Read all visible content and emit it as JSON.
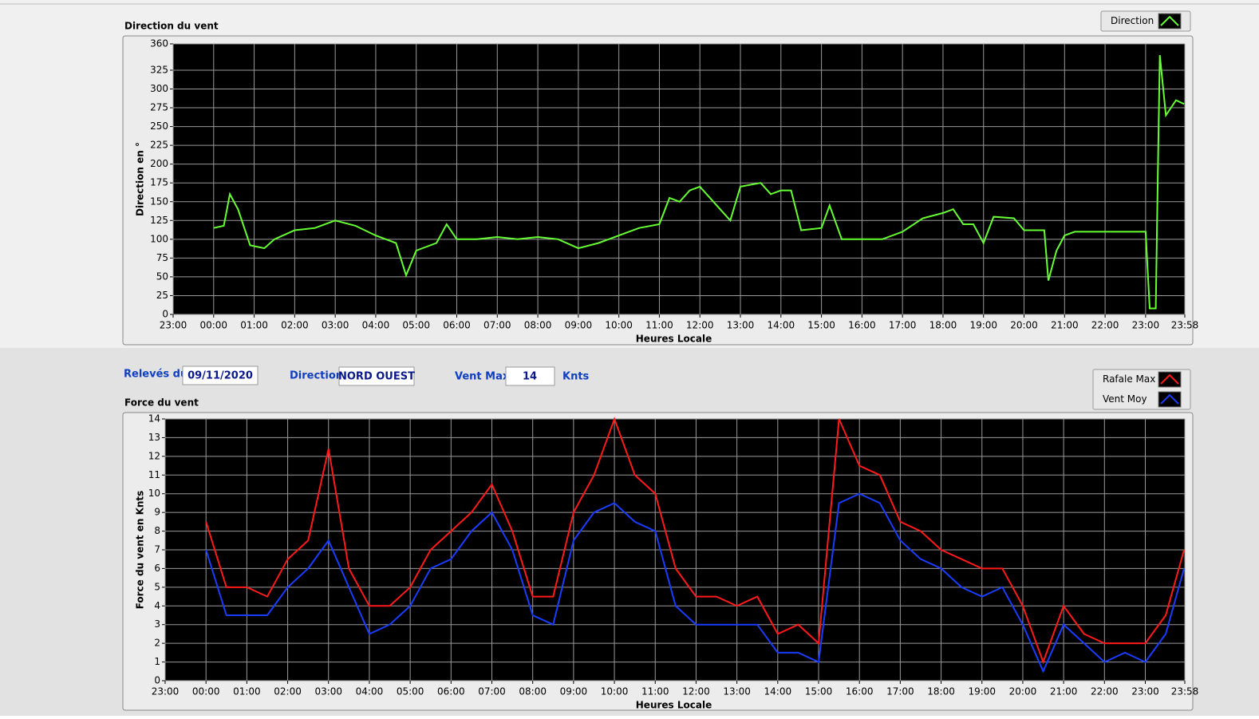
{
  "chart_data": [
    {
      "type": "line",
      "title": "Direction du vent",
      "x_label": "Heures Locale",
      "y_label": "Direction en °",
      "legend": "top-right",
      "grid": true,
      "xlim": [
        -1,
        23.967
      ],
      "ylim": [
        0,
        360
      ],
      "xticks": [
        {
          "value": -1,
          "label": "23:00"
        },
        {
          "value": 0,
          "label": "00:00"
        },
        {
          "value": 1,
          "label": "01:00"
        },
        {
          "value": 2,
          "label": "02:00"
        },
        {
          "value": 3,
          "label": "03:00"
        },
        {
          "value": 4,
          "label": "04:00"
        },
        {
          "value": 5,
          "label": "05:00"
        },
        {
          "value": 6,
          "label": "06:00"
        },
        {
          "value": 7,
          "label": "07:00"
        },
        {
          "value": 8,
          "label": "08:00"
        },
        {
          "value": 9,
          "label": "09:00"
        },
        {
          "value": 10,
          "label": "10:00"
        },
        {
          "value": 11,
          "label": "11:00"
        },
        {
          "value": 12,
          "label": "12:00"
        },
        {
          "value": 13,
          "label": "13:00"
        },
        {
          "value": 14,
          "label": "14:00"
        },
        {
          "value": 15,
          "label": "15:00"
        },
        {
          "value": 16,
          "label": "16:00"
        },
        {
          "value": 17,
          "label": "17:00"
        },
        {
          "value": 18,
          "label": "18:00"
        },
        {
          "value": 19,
          "label": "19:00"
        },
        {
          "value": 20,
          "label": "20:00"
        },
        {
          "value": 21,
          "label": "21:00"
        },
        {
          "value": 22,
          "label": "22:00"
        },
        {
          "value": 23,
          "label": "23:00"
        },
        {
          "value": 23.967,
          "label": "23:58"
        }
      ],
      "yticks": [
        0,
        25,
        50,
        75,
        100,
        125,
        150,
        175,
        200,
        225,
        250,
        275,
        300,
        325,
        360
      ],
      "x": [
        0,
        0.25,
        0.4,
        0.6,
        0.9,
        1.25,
        1.5,
        2,
        2.5,
        3,
        3.5,
        4,
        4.5,
        4.75,
        5,
        5.5,
        5.75,
        6,
        6.5,
        7,
        7.5,
        8,
        8.5,
        9,
        9.5,
        10,
        10.5,
        11,
        11.25,
        11.5,
        11.75,
        12,
        12.5,
        12.75,
        13,
        13.5,
        13.75,
        14,
        14.25,
        14.5,
        15,
        15.2,
        15.5,
        16,
        16.5,
        17,
        17.5,
        18,
        18.25,
        18.5,
        18.75,
        19,
        19.25,
        19.75,
        20,
        20.5,
        20.6,
        20.8,
        21,
        21.25,
        23,
        23.1,
        23.25,
        23.3,
        23.35,
        23.5,
        23.75,
        23.95
      ],
      "series": [
        {
          "name": "Direction",
          "color": "#66ff33",
          "values": [
            115,
            118,
            160,
            140,
            92,
            88,
            100,
            112,
            115,
            125,
            118,
            105,
            95,
            52,
            85,
            95,
            120,
            100,
            100,
            103,
            100,
            103,
            100,
            88,
            95,
            105,
            115,
            120,
            155,
            150,
            165,
            170,
            140,
            125,
            170,
            175,
            160,
            165,
            165,
            112,
            115,
            145,
            100,
            100,
            100,
            110,
            128,
            135,
            140,
            120,
            120,
            95,
            130,
            128,
            112,
            112,
            45,
            85,
            105,
            110,
            110,
            8,
            8,
            180,
            345,
            265,
            285,
            280
          ]
        }
      ]
    },
    {
      "type": "line",
      "title": "Force du vent",
      "x_label": "Heures Locale",
      "y_label": "Force du vent en Knts",
      "legend": "top-right",
      "grid": true,
      "xlim": [
        -1,
        23.967
      ],
      "ylim": [
        0,
        14
      ],
      "xticks": [
        {
          "value": -1,
          "label": "23:00"
        },
        {
          "value": 0,
          "label": "00:00"
        },
        {
          "value": 1,
          "label": "01:00"
        },
        {
          "value": 2,
          "label": "02:00"
        },
        {
          "value": 3,
          "label": "03:00"
        },
        {
          "value": 4,
          "label": "04:00"
        },
        {
          "value": 5,
          "label": "05:00"
        },
        {
          "value": 6,
          "label": "06:00"
        },
        {
          "value": 7,
          "label": "07:00"
        },
        {
          "value": 8,
          "label": "08:00"
        },
        {
          "value": 9,
          "label": "09:00"
        },
        {
          "value": 10,
          "label": "10:00"
        },
        {
          "value": 11,
          "label": "11:00"
        },
        {
          "value": 12,
          "label": "12:00"
        },
        {
          "value": 13,
          "label": "13:00"
        },
        {
          "value": 14,
          "label": "14:00"
        },
        {
          "value": 15,
          "label": "15:00"
        },
        {
          "value": 16,
          "label": "16:00"
        },
        {
          "value": 17,
          "label": "17:00"
        },
        {
          "value": 18,
          "label": "18:00"
        },
        {
          "value": 19,
          "label": "19:00"
        },
        {
          "value": 20,
          "label": "20:00"
        },
        {
          "value": 21,
          "label": "21:00"
        },
        {
          "value": 22,
          "label": "22:00"
        },
        {
          "value": 23,
          "label": "23:00"
        },
        {
          "value": 23.967,
          "label": "23:58"
        }
      ],
      "yticks": [
        0,
        1,
        2,
        3,
        4,
        5,
        6,
        7,
        8,
        9,
        10,
        11,
        12,
        13,
        14
      ],
      "x": [
        0,
        0.5,
        1,
        1.5,
        2,
        2.5,
        3,
        3.5,
        4,
        4.5,
        5,
        5.5,
        6,
        6.5,
        7,
        7.5,
        8,
        8.5,
        9,
        9.5,
        10,
        10.5,
        11,
        11.5,
        12,
        12.5,
        13,
        13.5,
        14,
        14.5,
        15,
        15.5,
        16,
        16.5,
        17,
        17.5,
        18,
        18.5,
        19,
        19.5,
        20,
        20.5,
        21,
        21.5,
        22,
        22.5,
        23,
        23.5,
        23.95
      ],
      "series": [
        {
          "name": "Rafale Max",
          "color": "#ff1a1a",
          "values": [
            8.5,
            5,
            5,
            4.5,
            6.5,
            7.5,
            12.4,
            6,
            4,
            4,
            5,
            7,
            8,
            9,
            10.5,
            8,
            4.5,
            4.5,
            9,
            11,
            14,
            11,
            10,
            6,
            4.5,
            4.5,
            4,
            4.5,
            2.5,
            3,
            2,
            14,
            11.5,
            11,
            8.5,
            8,
            7,
            6.5,
            6,
            6,
            4,
            1,
            4,
            2.5,
            2,
            2,
            2,
            3.5,
            7
          ]
        },
        {
          "name": "Vent Moy",
          "color": "#1a3cff",
          "values": [
            7,
            3.5,
            3.5,
            3.5,
            5,
            6,
            7.5,
            5,
            2.5,
            3,
            4,
            6,
            6.5,
            8,
            9,
            7,
            3.5,
            3,
            7.5,
            9,
            9.5,
            8.5,
            8,
            4,
            3,
            3,
            3,
            3,
            1.5,
            1.5,
            1,
            9.5,
            10,
            9.5,
            7.5,
            6.5,
            6,
            5,
            4.5,
            5,
            3,
            0.5,
            3,
            2,
            1,
            1.5,
            1,
            2.5,
            6
          ]
        }
      ]
    }
  ],
  "form": {
    "date_label": "Relevés du",
    "date": "09/11/2020",
    "direction_label": "Direction",
    "direction": "NORD OUEST",
    "vent_max_label": "Vent Max",
    "vent_max": 14,
    "unit": "Knts"
  }
}
